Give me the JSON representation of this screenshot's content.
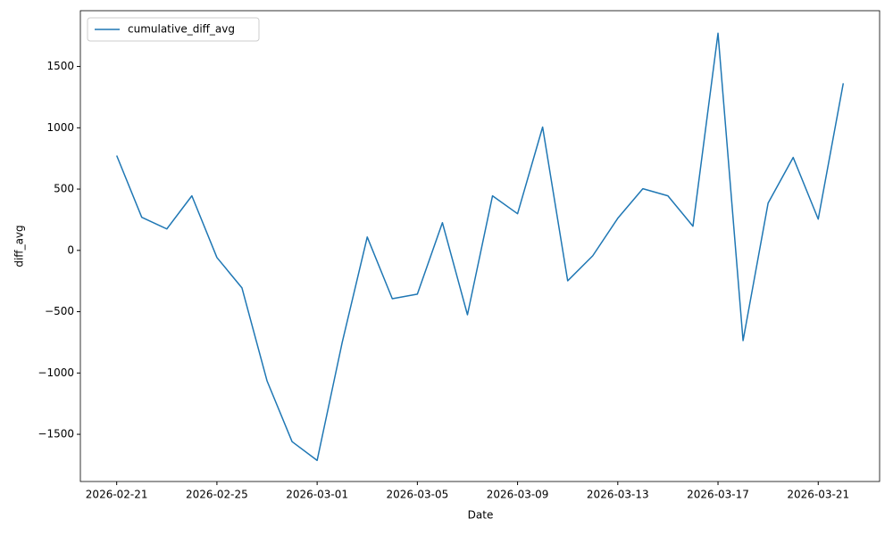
{
  "chart_data": {
    "type": "line",
    "x_label": "Date",
    "y_label": "diff_avg",
    "x": [
      "2026-02-21",
      "2026-02-22",
      "2026-02-23",
      "2026-02-24",
      "2026-02-25",
      "2026-02-26",
      "2026-02-27",
      "2026-02-28",
      "2026-03-01",
      "2026-03-02",
      "2026-03-03",
      "2026-03-04",
      "2026-03-05",
      "2026-03-06",
      "2026-03-07",
      "2026-03-08",
      "2026-03-09",
      "2026-03-10",
      "2026-03-11",
      "2026-03-12",
      "2026-03-13",
      "2026-03-14",
      "2026-03-15",
      "2026-03-16",
      "2026-03-17",
      "2026-03-18",
      "2026-03-19",
      "2026-03-20",
      "2026-03-21",
      "2026-03-22"
    ],
    "series": [
      {
        "name": "cumulative_diff_avg",
        "color": "#1f77b4",
        "values": [
          773,
          270,
          175,
          445,
          -58,
          -306,
          -1064,
          -1560,
          -1713,
          -751,
          109,
          -394,
          -357,
          226,
          -525,
          445,
          299,
          1006,
          -248,
          -44,
          262,
          503,
          445,
          197,
          1771,
          -736,
          386,
          758,
          255,
          1363
        ]
      }
    ],
    "xticks": [
      "2026-02-21",
      "2026-02-25",
      "2026-03-01",
      "2026-03-05",
      "2026-03-09",
      "2026-03-13",
      "2026-03-17",
      "2026-03-21"
    ],
    "ylim": [
      -1885,
      1955
    ],
    "yticks": [
      {
        "value": -1500,
        "label": "−1500"
      },
      {
        "value": -1000,
        "label": "−1000"
      },
      {
        "value": -500,
        "label": "−500"
      },
      0,
      500,
      1000,
      1500
    ],
    "legend": "upper left"
  }
}
